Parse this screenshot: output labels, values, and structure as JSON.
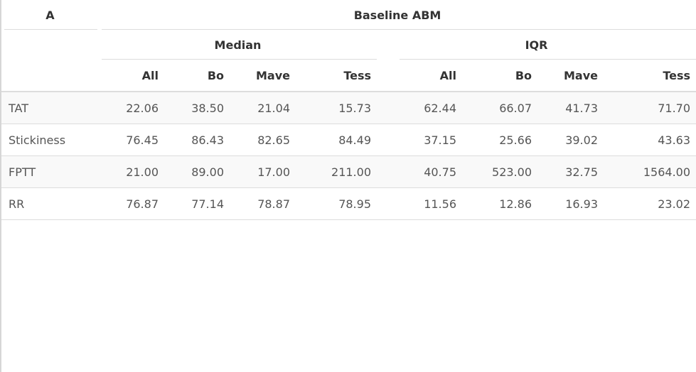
{
  "table": {
    "corner_header": "A",
    "spanner_header": "Baseline ABM",
    "groups": [
      {
        "label": "Median"
      },
      {
        "label": "IQR"
      }
    ],
    "columns": [
      "All",
      "Bo",
      "Mave",
      "Tess",
      "All",
      "Bo",
      "Mave",
      "Tess"
    ],
    "rows": [
      {
        "label": "TAT",
        "cells": [
          "22.06",
          "38.50",
          "21.04",
          "15.73",
          "62.44",
          "66.07",
          "41.73",
          "71.70"
        ]
      },
      {
        "label": "Stickiness",
        "cells": [
          "76.45",
          "86.43",
          "82.65",
          "84.49",
          "37.15",
          "25.66",
          "39.02",
          "43.63"
        ]
      },
      {
        "label": "FPTT",
        "cells": [
          "21.00",
          "89.00",
          "17.00",
          "211.00",
          "40.75",
          "523.00",
          "32.75",
          "1564.00"
        ]
      },
      {
        "label": "RR",
        "cells": [
          "76.87",
          "77.14",
          "78.87",
          "78.95",
          "11.56",
          "12.86",
          "16.93",
          "23.02"
        ]
      }
    ]
  }
}
